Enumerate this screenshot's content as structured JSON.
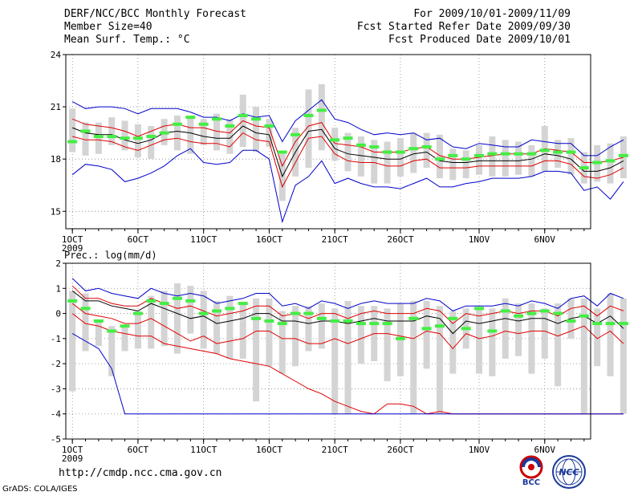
{
  "header": {
    "title": "DERF/NCC/BCC Monthly Forecast",
    "member_size": "Member Size=40",
    "variable": "Mean Surf. Temp.: °C",
    "period": "For 2009/10/01-2009/11/09",
    "started": "Fcst Started Refer Date 2009/09/30",
    "produced": "Fcst Produced Date 2009/10/01"
  },
  "footer": {
    "url": "http://cmdp.ncc.cma.gov.cn",
    "grads": "GrADS: COLA/IGES",
    "bcc_logo_text": "BCC",
    "ncc_logo_text": "NCC"
  },
  "colors": {
    "box": "#d4d4d4",
    "median": "#44ee44",
    "mean": "#000000",
    "spread": "#e00000",
    "envelope": "#0000cc",
    "grid": "#888888"
  },
  "chart_data": [
    {
      "type": "line",
      "name": "temperature",
      "title": "Mean Surf. Temp.: °C",
      "ylim": [
        14,
        24
      ],
      "yticks": [
        15,
        18,
        21,
        24
      ],
      "xlim": [
        0.5,
        40.5
      ],
      "xticks": [
        {
          "day": 1,
          "label": "1OCT",
          "sub": "2009"
        },
        {
          "day": 6,
          "label": "6OCT"
        },
        {
          "day": 11,
          "label": "11OCT"
        },
        {
          "day": 16,
          "label": "16OCT"
        },
        {
          "day": 21,
          "label": "21OCT"
        },
        {
          "day": 26,
          "label": "26OCT"
        },
        {
          "day": 32,
          "label": "1NOV"
        },
        {
          "day": 37,
          "label": "6NOV"
        }
      ],
      "series": [
        {
          "name": "max",
          "color": "#0000cc",
          "values": [
            21.3,
            20.9,
            21.0,
            21.0,
            20.9,
            20.6,
            20.9,
            20.9,
            20.9,
            20.7,
            20.4,
            20.4,
            20.2,
            20.6,
            20.4,
            20.5,
            19.0,
            20.2,
            20.8,
            21.4,
            20.3,
            20.1,
            19.7,
            19.4,
            19.5,
            19.4,
            19.5,
            19.1,
            19.2,
            18.7,
            18.6,
            18.9,
            18.8,
            18.7,
            18.7,
            19.1,
            19.0,
            18.9,
            18.9,
            18.2,
            18.2,
            18.7,
            19.1
          ]
        },
        {
          "name": "mean_plus_sd",
          "color": "#e00000",
          "values": [
            20.3,
            20.0,
            19.9,
            19.8,
            19.6,
            19.3,
            19.6,
            19.9,
            20.0,
            19.8,
            19.8,
            19.6,
            19.5,
            20.2,
            19.9,
            19.8,
            17.6,
            19.0,
            19.9,
            20.1,
            18.9,
            18.8,
            18.7,
            18.4,
            18.4,
            18.4,
            18.6,
            18.7,
            18.2,
            18.0,
            18.0,
            18.1,
            18.2,
            18.3,
            18.3,
            18.3,
            18.6,
            18.5,
            18.4,
            17.8,
            17.8,
            17.9,
            18.1
          ]
        },
        {
          "name": "mean",
          "color": "#000000",
          "values": [
            19.8,
            19.5,
            19.4,
            19.4,
            19.1,
            18.9,
            19.1,
            19.5,
            19.6,
            19.5,
            19.3,
            19.2,
            19.2,
            19.9,
            19.5,
            19.4,
            17.0,
            18.4,
            19.6,
            19.7,
            18.6,
            18.3,
            18.2,
            18.1,
            18.0,
            18.0,
            18.3,
            18.4,
            17.9,
            17.8,
            17.8,
            17.9,
            17.9,
            17.9,
            17.9,
            18.0,
            18.3,
            18.2,
            18.0,
            17.3,
            17.3,
            17.5,
            17.9
          ]
        },
        {
          "name": "mean_minus_sd",
          "color": "#e00000",
          "values": [
            19.3,
            19.1,
            19.1,
            19.0,
            18.7,
            18.5,
            18.8,
            19.1,
            19.2,
            19.0,
            18.9,
            18.9,
            18.7,
            19.5,
            19.1,
            19.0,
            16.4,
            17.8,
            19.2,
            19.3,
            18.3,
            17.9,
            17.8,
            17.8,
            17.6,
            17.6,
            17.9,
            18.0,
            17.5,
            17.5,
            17.5,
            17.6,
            17.6,
            17.6,
            17.6,
            17.6,
            17.9,
            17.9,
            17.7,
            17.0,
            16.9,
            17.1,
            17.5
          ]
        },
        {
          "name": "min",
          "color": "#0000cc",
          "values": [
            17.1,
            17.7,
            17.6,
            17.4,
            16.7,
            16.9,
            17.2,
            17.6,
            18.2,
            18.6,
            17.8,
            17.7,
            17.8,
            18.5,
            18.5,
            18.0,
            14.4,
            16.5,
            17.0,
            17.9,
            16.6,
            16.9,
            16.6,
            16.4,
            16.4,
            16.3,
            16.6,
            16.9,
            16.4,
            16.4,
            16.6,
            16.7,
            16.9,
            16.9,
            16.9,
            17.0,
            17.3,
            17.3,
            17.2,
            16.2,
            16.4,
            15.7,
            16.7
          ]
        }
      ],
      "boxes": {
        "top": [
          20.9,
          20.1,
          20.1,
          20.4,
          20.2,
          20.0,
          19.9,
          20.3,
          20.5,
          20.5,
          20.3,
          20.6,
          20.3,
          21.7,
          21.0,
          20.3,
          18.3,
          19.8,
          22.0,
          22.3,
          19.8,
          19.5,
          19.3,
          19.1,
          19.0,
          19.2,
          19.5,
          19.5,
          19.4,
          18.6,
          18.5,
          18.8,
          19.3,
          19.1,
          19.0,
          18.8,
          19.9,
          19.1,
          19.2,
          18.4,
          18.8,
          18.9,
          19.3
        ],
        "bottom": [
          18.4,
          18.2,
          18.3,
          18.8,
          18.5,
          18.1,
          18.0,
          18.8,
          18.5,
          18.3,
          18.8,
          18.5,
          18.3,
          18.7,
          18.4,
          18.7,
          15.6,
          17.0,
          17.5,
          18.5,
          17.9,
          17.3,
          17.0,
          16.6,
          16.6,
          17.0,
          17.2,
          17.5,
          16.9,
          16.8,
          16.9,
          17.1,
          17.0,
          17.0,
          17.1,
          17.0,
          17.3,
          17.5,
          17.1,
          16.6,
          16.7,
          16.6,
          16.9
        ],
        "median": [
          19.0,
          19.6,
          19.3,
          19.3,
          19.2,
          19.2,
          19.3,
          19.5,
          20.0,
          20.4,
          20.0,
          20.3,
          19.9,
          20.5,
          20.3,
          19.9,
          18.4,
          19.4,
          20.5,
          20.8,
          19.1,
          19.2,
          18.8,
          18.7,
          18.4,
          18.4,
          18.6,
          18.7,
          18.0,
          18.2,
          18.0,
          18.2,
          18.3,
          18.3,
          18.3,
          18.3,
          18.5,
          18.4,
          18.4,
          17.5,
          17.8,
          17.9,
          18.2
        ]
      }
    },
    {
      "type": "line",
      "name": "precipitation",
      "title": "Prec.: log(mm/d)",
      "ylim": [
        -5,
        2
      ],
      "yticks": [
        -5,
        -4,
        -3,
        -2,
        -1,
        0,
        1,
        2
      ],
      "xlim": [
        0.5,
        40.5
      ],
      "xticks": [
        {
          "day": 1,
          "label": "1OCT",
          "sub": "2009"
        },
        {
          "day": 6,
          "label": "6OCT"
        },
        {
          "day": 11,
          "label": "11OCT"
        },
        {
          "day": 16,
          "label": "16OCT"
        },
        {
          "day": 21,
          "label": "21OCT"
        },
        {
          "day": 26,
          "label": "26OCT"
        },
        {
          "day": 32,
          "label": "1NOV"
        },
        {
          "day": 37,
          "label": "6NOV"
        }
      ],
      "series": [
        {
          "name": "max",
          "color": "#0000cc",
          "values": [
            1.4,
            0.9,
            1.0,
            0.8,
            0.7,
            0.6,
            1.0,
            0.8,
            0.7,
            0.8,
            0.7,
            0.4,
            0.5,
            0.6,
            0.8,
            0.8,
            0.3,
            0.4,
            0.2,
            0.5,
            0.4,
            0.2,
            0.4,
            0.5,
            0.4,
            0.4,
            0.4,
            0.6,
            0.5,
            0.1,
            0.3,
            0.3,
            0.3,
            0.4,
            0.3,
            0.5,
            0.4,
            0.2,
            0.6,
            0.7,
            0.3,
            0.8,
            0.6
          ]
        },
        {
          "name": "mean_plus_sd",
          "color": "#e00000",
          "values": [
            1.1,
            0.6,
            0.6,
            0.4,
            0.3,
            0.3,
            0.6,
            0.4,
            0.2,
            0.3,
            0.1,
            -0.1,
            0.0,
            0.1,
            0.3,
            0.3,
            -0.1,
            0.0,
            -0.2,
            0.0,
            0.0,
            -0.2,
            0.0,
            0.1,
            0.0,
            0.0,
            0.0,
            0.2,
            0.1,
            -0.4,
            0.0,
            -0.1,
            0.0,
            0.1,
            0.0,
            0.1,
            0.1,
            -0.1,
            0.2,
            0.3,
            -0.1,
            0.3,
            0.1
          ]
        },
        {
          "name": "mean",
          "color": "#000000",
          "values": [
            0.9,
            0.5,
            0.5,
            0.3,
            0.2,
            0.1,
            0.4,
            0.2,
            0.0,
            -0.2,
            -0.1,
            -0.4,
            -0.3,
            -0.2,
            0.0,
            0.0,
            -0.3,
            -0.3,
            -0.4,
            -0.3,
            -0.3,
            -0.4,
            -0.3,
            -0.2,
            -0.3,
            -0.3,
            -0.3,
            -0.1,
            -0.2,
            -0.8,
            -0.3,
            -0.4,
            -0.3,
            -0.2,
            -0.3,
            -0.2,
            -0.2,
            -0.4,
            -0.2,
            -0.1,
            -0.4,
            -0.1,
            -0.6
          ]
        },
        {
          "name": "mean_minus_sd",
          "color": "#e00000",
          "values": [
            0.4,
            0.0,
            -0.1,
            -0.2,
            -0.4,
            -0.4,
            -0.2,
            -0.5,
            -0.8,
            -1.1,
            -0.9,
            -1.2,
            -1.1,
            -1.0,
            -0.7,
            -0.7,
            -1.0,
            -1.0,
            -1.2,
            -1.2,
            -1.0,
            -1.2,
            -1.0,
            -0.8,
            -0.8,
            -0.9,
            -1.0,
            -0.7,
            -0.8,
            -1.4,
            -0.8,
            -1.0,
            -0.9,
            -0.7,
            -0.8,
            -0.7,
            -0.7,
            -0.9,
            -0.7,
            -0.5,
            -1.0,
            -0.7,
            -1.2
          ]
        },
        {
          "name": "mean_minus_2sd",
          "color": "#e00000",
          "values": [
            0.0,
            -0.4,
            -0.5,
            -0.7,
            -0.8,
            -0.9,
            -0.9,
            -1.2,
            -1.3,
            -1.4,
            -1.5,
            -1.6,
            -1.8,
            -1.9,
            -2.0,
            -2.1,
            -2.4,
            -2.7,
            -3.0,
            -3.2,
            -3.5,
            -3.7,
            -3.9,
            -4.0,
            -3.6,
            -3.6,
            -3.7,
            -4.0,
            -3.9,
            -4.0,
            -4.0,
            -4.0,
            -4.0,
            -4.0,
            -4.0,
            -4.0,
            -4.0,
            -4.0,
            -4.0,
            -4.0,
            -4.0,
            -4.0,
            -4.0
          ]
        },
        {
          "name": "min",
          "color": "#0000cc",
          "values": [
            -0.8,
            -1.1,
            -1.4,
            -2.2,
            -4.0,
            -4.0,
            -4.0,
            -4.0,
            -4.0,
            -4.0,
            -4.0,
            -4.0,
            -4.0,
            -4.0,
            -4.0,
            -4.0,
            -4.0,
            -4.0,
            -4.0,
            -4.0,
            -4.0,
            -4.0,
            -4.0,
            -4.0,
            -4.0,
            -4.0,
            -4.0,
            -4.0,
            -4.0,
            -4.0,
            -4.0,
            -4.0,
            -4.0,
            -4.0,
            -4.0,
            -4.0,
            -4.0,
            -4.0,
            -4.0,
            -4.0,
            -4.0,
            -4.0,
            -4.0
          ]
        }
      ],
      "boxes": {
        "top": [
          0.9,
          0.8,
          -0.3,
          -0.5,
          -0.5,
          0.1,
          0.7,
          0.9,
          1.2,
          1.1,
          0.9,
          0.5,
          0.7,
          0.4,
          0.6,
          0.6,
          0.1,
          0.3,
          0.3,
          0.4,
          0.2,
          0.5,
          0.3,
          0.3,
          0.2,
          0.4,
          0.5,
          0.5,
          0.3,
          0.1,
          0.2,
          0.2,
          0.2,
          0.6,
          0.4,
          0.4,
          0.2,
          0.4,
          0.6,
          0.6,
          0.2,
          0.8,
          0.6
        ],
        "bottom": [
          -3.1,
          -1.5,
          -1.3,
          -2.5,
          -1.5,
          -1.4,
          -1.4,
          -1.3,
          -1.6,
          -0.8,
          -1.4,
          -1.6,
          -1.8,
          -1.8,
          -3.5,
          -2.1,
          -2.4,
          -2.1,
          -1.5,
          -1.4,
          -4.0,
          -4.0,
          -2.0,
          -1.9,
          -2.7,
          -2.5,
          -4.0,
          -2.2,
          -4.0,
          -2.4,
          -1.4,
          -2.4,
          -2.5,
          -1.8,
          -1.7,
          -2.4,
          -1.8,
          -2.9,
          -1.0,
          -4.0,
          -2.1,
          -2.5,
          -4.0
        ],
        "median": [
          0.5,
          0.2,
          -0.3,
          -0.7,
          -0.5,
          0.0,
          0.5,
          0.4,
          0.6,
          0.5,
          0.0,
          0.1,
          0.2,
          0.4,
          -0.2,
          -0.3,
          -0.4,
          0.0,
          0.0,
          -0.2,
          -0.3,
          -0.3,
          -0.4,
          -0.4,
          -0.4,
          -1.0,
          -0.2,
          -0.6,
          -0.5,
          -0.2,
          -0.6,
          0.2,
          -0.7,
          0.1,
          -0.1,
          0.0,
          0.1,
          0.0,
          -0.3,
          -0.1,
          -0.4,
          -0.4,
          -0.4
        ]
      }
    }
  ]
}
